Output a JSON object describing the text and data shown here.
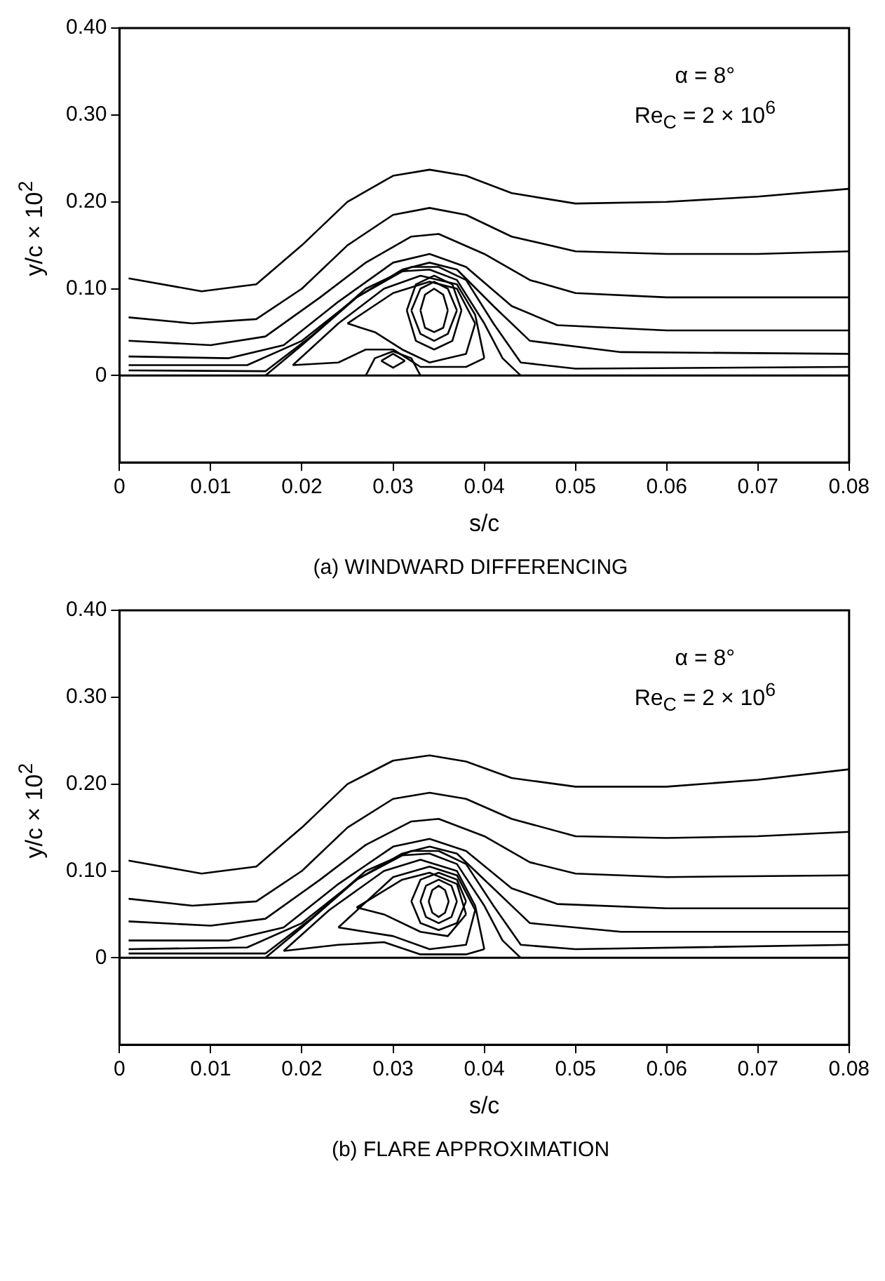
{
  "chart_data": [
    {
      "type": "line",
      "title": "(a)  WINDWARD DIFFERENCING",
      "xlabel": "s/c",
      "ylabel": "y/c × 10$^{2}$",
      "annotations": [
        "α = 8°",
        "Re$_{C}$ = 2 × 10$^{6}$"
      ],
      "xlim": [
        0,
        0.08
      ],
      "xticks": [
        0,
        0.01,
        0.02,
        0.03,
        0.04,
        0.05,
        0.06,
        0.07,
        0.08
      ],
      "ylim": [
        -0.1,
        0.4
      ],
      "yticks": [
        0,
        {
          "value": 0.1,
          "label": "0.10"
        },
        {
          "value": 0.2,
          "label": "0.20"
        },
        {
          "value": 0.3,
          "label": "0.30"
        },
        {
          "value": 0.4,
          "label": "0.40"
        }
      ],
      "grid": false,
      "legend": false,
      "marker": "none",
      "line_style": "solid",
      "ref_lines": [
        {
          "axis": "y",
          "value": 0,
          "color": "#000000"
        }
      ],
      "series": [
        {
          "color": "#000000",
          "x": [
            0.001,
            0.009,
            0.015,
            0.02,
            0.025,
            0.03,
            0.034,
            0.038,
            0.043,
            0.05,
            0.06,
            0.07,
            0.08
          ],
          "values": [
            0.112,
            0.097,
            0.105,
            0.15,
            0.2,
            0.23,
            0.237,
            0.23,
            0.21,
            0.198,
            0.2,
            0.206,
            0.215
          ]
        },
        {
          "color": "#000000",
          "x": [
            0.001,
            0.008,
            0.015,
            0.02,
            0.025,
            0.03,
            0.034,
            0.038,
            0.043,
            0.05,
            0.06,
            0.07,
            0.08
          ],
          "values": [
            0.067,
            0.06,
            0.065,
            0.1,
            0.15,
            0.185,
            0.193,
            0.185,
            0.16,
            0.143,
            0.14,
            0.14,
            0.143
          ]
        },
        {
          "color": "#000000",
          "x": [
            0.001,
            0.01,
            0.016,
            0.022,
            0.027,
            0.032,
            0.035,
            0.04,
            0.045,
            0.05,
            0.06,
            0.08
          ],
          "values": [
            0.04,
            0.035,
            0.045,
            0.09,
            0.13,
            0.16,
            0.163,
            0.14,
            0.11,
            0.095,
            0.09,
            0.09
          ]
        },
        {
          "color": "#000000",
          "x": [
            0.001,
            0.012,
            0.018,
            0.024,
            0.03,
            0.034,
            0.038,
            0.043,
            0.048,
            0.06,
            0.08
          ],
          "values": [
            0.022,
            0.02,
            0.035,
            0.085,
            0.13,
            0.14,
            0.125,
            0.08,
            0.058,
            0.052,
            0.052
          ]
        },
        {
          "color": "#000000",
          "x": [
            0.001,
            0.014,
            0.02,
            0.026,
            0.031,
            0.034,
            0.037,
            0.041,
            0.045,
            0.055,
            0.08
          ],
          "values": [
            0.012,
            0.012,
            0.04,
            0.09,
            0.122,
            0.13,
            0.122,
            0.08,
            0.04,
            0.027,
            0.025
          ]
        },
        {
          "color": "#000000",
          "x": [
            0.001,
            0.016,
            0.021,
            0.027,
            0.032,
            0.035,
            0.038,
            0.041,
            0.044,
            0.05,
            0.08
          ],
          "values": [
            0.006,
            0.005,
            0.045,
            0.1,
            0.125,
            0.125,
            0.11,
            0.06,
            0.015,
            0.008,
            0.01
          ]
        },
        {
          "color": "#000000",
          "x": [
            0.016,
            0.02,
            0.026,
            0.031,
            0.034,
            0.037,
            0.04,
            0.042,
            0.044
          ],
          "values": [
            0,
            0.035,
            0.09,
            0.12,
            0.122,
            0.11,
            0.06,
            0.02,
            0
          ]
        },
        {
          "color": "#000000",
          "x": [
            0.019,
            0.024,
            0.029,
            0.033,
            0.037,
            0.039,
            0.04
          ],
          "values": [
            0.012,
            0.06,
            0.1,
            0.115,
            0.105,
            0.07,
            0.02
          ]
        },
        {
          "color": "#000000",
          "x": [
            0.019,
            0.024,
            0.027,
            0.03,
            0.033,
            0.038,
            0.04
          ],
          "values": [
            0.012,
            0.015,
            0.03,
            0.03,
            0.01,
            0.01,
            0.02
          ]
        },
        {
          "color": "#000000",
          "x": [
            0.025,
            0.03,
            0.034,
            0.037,
            0.039
          ],
          "values": [
            0.06,
            0.095,
            0.108,
            0.1,
            0.06
          ]
        },
        {
          "color": "#000000",
          "x": [
            0.025,
            0.028,
            0.031,
            0.034,
            0.038,
            0.039
          ],
          "values": [
            0.06,
            0.05,
            0.03,
            0.015,
            0.025,
            0.06
          ]
        },
        {
          "color": "#000000",
          "x": [
            0.0315,
            0.0325,
            0.0345,
            0.0365,
            0.0375
          ],
          "values": [
            0.075,
            0.105,
            0.115,
            0.105,
            0.075
          ]
        },
        {
          "color": "#000000",
          "x": [
            0.0315,
            0.0325,
            0.0345,
            0.0365,
            0.0375
          ],
          "values": [
            0.075,
            0.04,
            0.03,
            0.04,
            0.075
          ]
        },
        {
          "color": "#000000",
          "x": [
            0.032,
            0.033,
            0.0345,
            0.036,
            0.037
          ],
          "values": [
            0.075,
            0.1,
            0.108,
            0.1,
            0.075
          ]
        },
        {
          "color": "#000000",
          "x": [
            0.032,
            0.033,
            0.0345,
            0.036,
            0.037
          ],
          "values": [
            0.075,
            0.048,
            0.04,
            0.048,
            0.075
          ]
        },
        {
          "color": "#000000",
          "x": [
            0.033,
            0.0335,
            0.0345,
            0.0355,
            0.036
          ],
          "values": [
            0.075,
            0.093,
            0.1,
            0.093,
            0.075
          ]
        },
        {
          "color": "#000000",
          "x": [
            0.033,
            0.0335,
            0.0345,
            0.0355,
            0.036
          ],
          "values": [
            0.075,
            0.055,
            0.05,
            0.055,
            0.075
          ]
        },
        {
          "color": "#000000",
          "x": [
            0.027,
            0.028,
            0.03,
            0.032,
            0.033
          ],
          "values": [
            0,
            0.02,
            0.028,
            0.02,
            0
          ]
        },
        {
          "color": "#000000",
          "x": [
            0.0287,
            0.03,
            0.0313
          ],
          "values": [
            0.017,
            0.025,
            0.017
          ]
        },
        {
          "color": "#000000",
          "x": [
            0.0287,
            0.03,
            0.0313
          ],
          "values": [
            0.017,
            0.009,
            0.017
          ]
        }
      ]
    },
    {
      "type": "line",
      "title": "(b)  FLARE APPROXIMATION",
      "xlabel": "s/c",
      "ylabel": "y/c × 10$^{2}$",
      "annotations": [
        "α = 8°",
        "Re$_{C}$ = 2 × 10$^{6}$"
      ],
      "xlim": [
        0,
        0.08
      ],
      "xticks": [
        0,
        0.01,
        0.02,
        0.03,
        0.04,
        0.05,
        0.06,
        0.07,
        0.08
      ],
      "ylim": [
        -0.1,
        0.4
      ],
      "yticks": [
        0,
        {
          "value": 0.1,
          "label": "0.10"
        },
        {
          "value": 0.2,
          "label": "0.20"
        },
        {
          "value": 0.3,
          "label": "0.30"
        },
        {
          "value": 0.4,
          "label": "0.40"
        }
      ],
      "grid": false,
      "legend": false,
      "marker": "none",
      "line_style": "solid",
      "ref_lines": [
        {
          "axis": "y",
          "value": 0,
          "color": "#000000"
        }
      ],
      "series": [
        {
          "color": "#000000",
          "x": [
            0.001,
            0.009,
            0.015,
            0.02,
            0.025,
            0.03,
            0.034,
            0.038,
            0.043,
            0.05,
            0.06,
            0.07,
            0.08
          ],
          "values": [
            0.112,
            0.097,
            0.105,
            0.15,
            0.2,
            0.227,
            0.233,
            0.226,
            0.207,
            0.197,
            0.197,
            0.205,
            0.217
          ]
        },
        {
          "color": "#000000",
          "x": [
            0.001,
            0.008,
            0.015,
            0.02,
            0.025,
            0.03,
            0.034,
            0.038,
            0.043,
            0.05,
            0.06,
            0.07,
            0.08
          ],
          "values": [
            0.068,
            0.06,
            0.065,
            0.1,
            0.15,
            0.183,
            0.19,
            0.183,
            0.16,
            0.14,
            0.138,
            0.14,
            0.145
          ]
        },
        {
          "color": "#000000",
          "x": [
            0.001,
            0.01,
            0.016,
            0.022,
            0.027,
            0.032,
            0.035,
            0.04,
            0.045,
            0.05,
            0.06,
            0.08
          ],
          "values": [
            0.042,
            0.037,
            0.045,
            0.09,
            0.13,
            0.157,
            0.16,
            0.14,
            0.11,
            0.097,
            0.093,
            0.095
          ]
        },
        {
          "color": "#000000",
          "x": [
            0.001,
            0.012,
            0.018,
            0.024,
            0.03,
            0.034,
            0.038,
            0.043,
            0.048,
            0.06,
            0.08
          ],
          "values": [
            0.02,
            0.02,
            0.035,
            0.085,
            0.128,
            0.137,
            0.123,
            0.08,
            0.062,
            0.057,
            0.057
          ]
        },
        {
          "color": "#000000",
          "x": [
            0.001,
            0.014,
            0.02,
            0.026,
            0.031,
            0.034,
            0.037,
            0.041,
            0.045,
            0.055,
            0.08
          ],
          "values": [
            0.01,
            0.012,
            0.04,
            0.09,
            0.12,
            0.128,
            0.12,
            0.08,
            0.04,
            0.03,
            0.03
          ]
        },
        {
          "color": "#000000",
          "x": [
            0.001,
            0.016,
            0.021,
            0.027,
            0.032,
            0.035,
            0.038,
            0.041,
            0.044,
            0.05,
            0.08
          ],
          "values": [
            0.005,
            0.005,
            0.045,
            0.1,
            0.123,
            0.123,
            0.108,
            0.06,
            0.015,
            0.01,
            0.015
          ]
        },
        {
          "color": "#000000",
          "x": [
            0.016,
            0.02,
            0.026,
            0.031,
            0.034,
            0.037,
            0.04,
            0.042,
            0.044
          ],
          "values": [
            0,
            0.035,
            0.09,
            0.118,
            0.12,
            0.108,
            0.06,
            0.02,
            0
          ]
        },
        {
          "color": "#000000",
          "x": [
            0.018,
            0.023,
            0.029,
            0.033,
            0.037,
            0.039,
            0.04
          ],
          "values": [
            0.008,
            0.055,
            0.1,
            0.113,
            0.1,
            0.06,
            0.01
          ]
        },
        {
          "color": "#000000",
          "x": [
            0.018,
            0.024,
            0.029,
            0.033,
            0.038,
            0.04
          ],
          "values": [
            0.008,
            0.015,
            0.018,
            0.004,
            0.004,
            0.01
          ]
        },
        {
          "color": "#000000",
          "x": [
            0.024,
            0.03,
            0.034,
            0.037,
            0.039
          ],
          "values": [
            0.035,
            0.093,
            0.105,
            0.095,
            0.055
          ]
        },
        {
          "color": "#000000",
          "x": [
            0.024,
            0.027,
            0.03,
            0.034,
            0.038,
            0.039
          ],
          "values": [
            0.035,
            0.03,
            0.025,
            0.01,
            0.015,
            0.055
          ]
        },
        {
          "color": "#000000",
          "x": [
            0.026,
            0.031,
            0.034,
            0.037,
            0.038
          ],
          "values": [
            0.058,
            0.09,
            0.098,
            0.085,
            0.05
          ]
        },
        {
          "color": "#000000",
          "x": [
            0.026,
            0.029,
            0.033,
            0.036,
            0.038
          ],
          "values": [
            0.058,
            0.05,
            0.03,
            0.025,
            0.05
          ]
        },
        {
          "color": "#000000",
          "x": [
            0.032,
            0.033,
            0.035,
            0.037,
            0.038
          ],
          "values": [
            0.065,
            0.09,
            0.098,
            0.09,
            0.065
          ]
        },
        {
          "color": "#000000",
          "x": [
            0.032,
            0.033,
            0.035,
            0.037,
            0.038
          ],
          "values": [
            0.065,
            0.04,
            0.032,
            0.04,
            0.065
          ]
        },
        {
          "color": "#000000",
          "x": [
            0.033,
            0.0336,
            0.035,
            0.0364,
            0.037
          ],
          "values": [
            0.065,
            0.083,
            0.09,
            0.083,
            0.065
          ]
        },
        {
          "color": "#000000",
          "x": [
            0.033,
            0.0336,
            0.035,
            0.0364,
            0.037
          ],
          "values": [
            0.065,
            0.047,
            0.04,
            0.047,
            0.065
          ]
        },
        {
          "color": "#000000",
          "x": [
            0.0339,
            0.0343,
            0.035,
            0.0357,
            0.0361
          ],
          "values": [
            0.065,
            0.078,
            0.083,
            0.078,
            0.065
          ]
        },
        {
          "color": "#000000",
          "x": [
            0.0339,
            0.0343,
            0.035,
            0.0357,
            0.0361
          ],
          "values": [
            0.065,
            0.052,
            0.047,
            0.052,
            0.065
          ]
        }
      ]
    }
  ]
}
